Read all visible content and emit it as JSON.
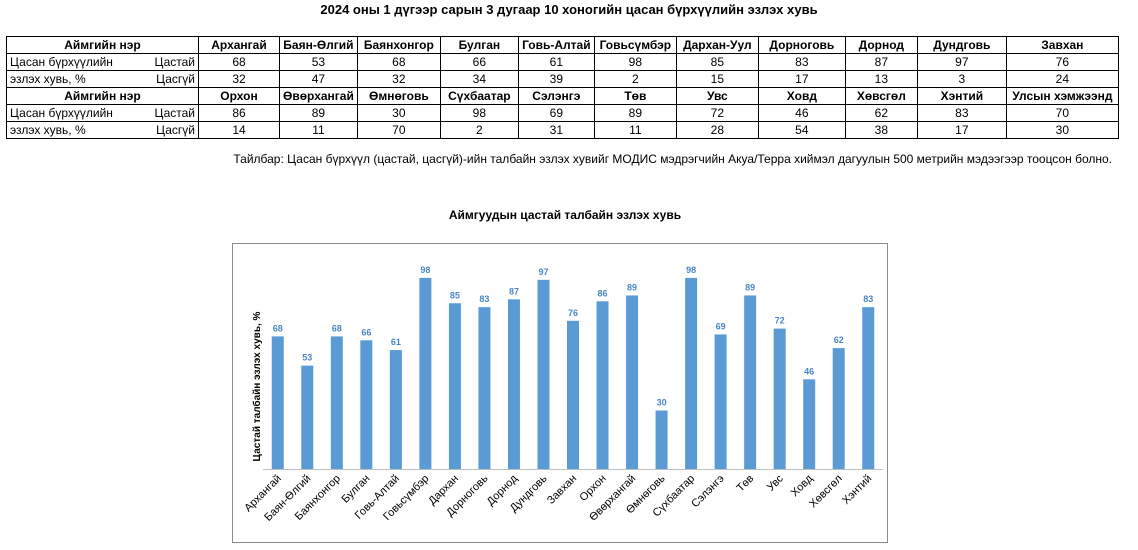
{
  "title": "2024 оны 1 дүгээр сарын 3 дугаар 10 хоногийн цасан бүрхүүлийн эзлэх хувь",
  "table": {
    "header_label": "Аймгийн нэр",
    "row_label_line1": "Цасан бүрхүүлийн",
    "row_label_line2": "эзлэх хувь, %",
    "with_snow": "Цастай",
    "without_snow": "Цасгүй",
    "block1": {
      "names": [
        "Архангай",
        "Баян-Өлгий",
        "Баянхонгор",
        "Булган",
        "Говь-Алтай",
        "Говьсүмбэр",
        "Дархан-Уул",
        "Дорноговь",
        "Дорнод",
        "Дундговь",
        "Завхан"
      ],
      "with_snow": [
        "68",
        "53",
        "68",
        "66",
        "61",
        "98",
        "85",
        "83",
        "87",
        "97",
        "76"
      ],
      "without_snow": [
        "32",
        "47",
        "32",
        "34",
        "39",
        "2",
        "15",
        "17",
        "13",
        "3",
        "24"
      ]
    },
    "block2": {
      "names": [
        "Орхон",
        "Өвөрхангай",
        "Өмнөговь",
        "Сүхбаатар",
        "Сэлэнгэ",
        "Төв",
        "Увс",
        "Ховд",
        "Хөвсгөл",
        "Хэнтий",
        "Улсын хэмжээнд"
      ],
      "with_snow": [
        "86",
        "89",
        "30",
        "98",
        "69",
        "89",
        "72",
        "46",
        "62",
        "83",
        "70"
      ],
      "without_snow": [
        "14",
        "11",
        "70",
        "2",
        "31",
        "11",
        "28",
        "54",
        "38",
        "17",
        "30"
      ]
    }
  },
  "note": "Тайлбар: Цасан бүрхүүл (цастай, цасгүй)-ийн талбайн эзлэх хувийг МОДИС мэдрэгчийн Акуа/Терра хиймэл дагуулын 500 метрийн мэдээгээр тооцсон болно.",
  "colors": {
    "bar": "#5b9bd5",
    "label": "#4a86c5",
    "axis": "#bfbfbf"
  },
  "chart_data": {
    "type": "bar",
    "title": "Аймгуудын цастай талбайн эзлэх хувь",
    "ylabel": "Цастай талбайн эзлэх хувь, %",
    "xlabel": "",
    "ylim": [
      0,
      100
    ],
    "grid": false,
    "legend": "none",
    "categories": [
      "Архангай",
      "Баян-Өлгий",
      "Баянхонгор",
      "Булган",
      "Говь-Алтай",
      "Говьсүмбэр",
      "Дархан",
      "Дорноговь",
      "Дорнод",
      "Дундговь",
      "Завхан",
      "Орхон",
      "Өвөрхангай",
      "Өмнөговь",
      "Сүхбаатар",
      "Сэлэнгэ",
      "Төв",
      "Увс",
      "Ховд",
      "Хөвсгөл",
      "Хэнтий"
    ],
    "values": [
      68,
      53,
      68,
      66,
      61,
      98,
      85,
      83,
      87,
      97,
      76,
      86,
      89,
      30,
      98,
      69,
      89,
      72,
      46,
      62,
      83
    ]
  }
}
